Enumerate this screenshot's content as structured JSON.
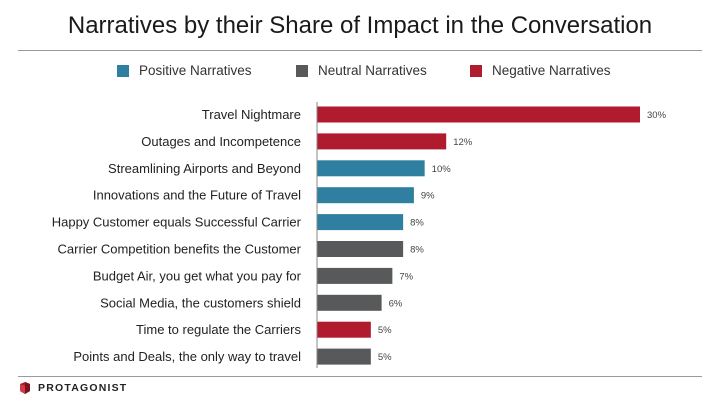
{
  "chart_data": {
    "type": "bar",
    "orientation": "horizontal",
    "title": "Narratives by their Share of Impact in the Conversation",
    "xlim": [
      0,
      30
    ],
    "grid": false,
    "legend_placement": "top",
    "legend": [
      {
        "name": "Positive Narratives",
        "color": "#2e7fa0"
      },
      {
        "name": "Neutral Narratives",
        "color": "#58595b"
      },
      {
        "name": "Negative Narratives",
        "color": "#b01b2e"
      }
    ],
    "categories": [
      "Travel Nightmare",
      "Outages and Incompetence",
      "Streamlining  Airports and Beyond",
      "Innovations and the Future of Travel",
      "Happy Customer equals Successful Carrier",
      "Carrier Competition benefits the Customer",
      "Budget Air, you get what you pay for",
      "Social Media, the customers shield",
      "Time to regulate the Carriers",
      "Points and Deals, the only way to travel"
    ],
    "values": [
      30,
      12,
      10,
      9,
      8,
      8,
      7,
      6,
      5,
      5
    ],
    "value_labels": [
      "30%",
      "12%",
      "10%",
      "9%",
      "8%",
      "8%",
      "7%",
      "6%",
      "5%",
      "5%"
    ],
    "sentiment": [
      "Negative",
      "Negative",
      "Positive",
      "Positive",
      "Positive",
      "Neutral",
      "Neutral",
      "Neutral",
      "Negative",
      "Neutral"
    ]
  },
  "footer": {
    "brand": "PROTAGONIST"
  },
  "colors": {
    "positive": "#2e7fa0",
    "neutral": "#58595b",
    "negative": "#b01b2e",
    "axis": "#888888"
  }
}
